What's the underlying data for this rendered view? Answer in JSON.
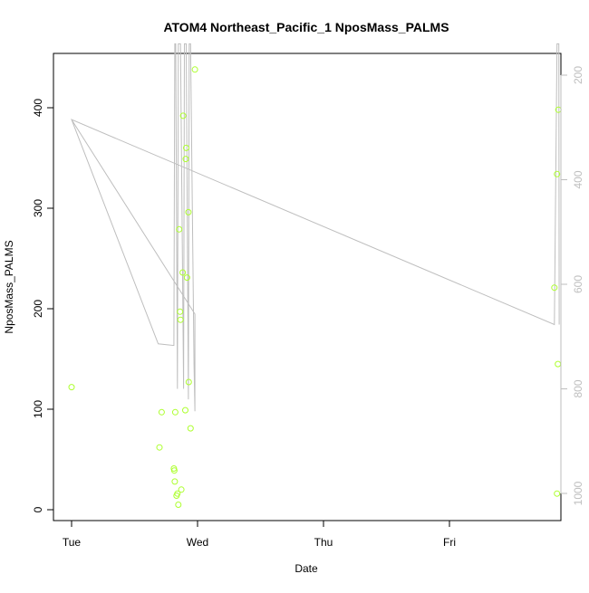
{
  "chart_data": {
    "type": "scatter",
    "title": "ATOM4 Northeast_Pacific_1 NposMass_PALMS",
    "xlabel": "Date",
    "ylabel": "NposMass_PALMS",
    "x_ticks": [
      "Tue",
      "Wed",
      "Thu",
      "Fri"
    ],
    "x_range": [
      "Tue 00:00",
      "Fri 20:00"
    ],
    "ylim": [
      -12,
      455
    ],
    "y_ticks": [
      0,
      100,
      200,
      300,
      400
    ],
    "y2_ticks": [
      200,
      400,
      600,
      800,
      1000
    ],
    "y2lim": [
      1010,
      140
    ],
    "point_color": "#ADFF2F",
    "line_color": "#BEBEBE",
    "points": [
      {
        "x": "Tue 00:00",
        "y": 122
      },
      {
        "x": "Tue 16:45",
        "y": 62
      },
      {
        "x": "Tue 17:10",
        "y": 97
      },
      {
        "x": "Tue 19:30",
        "y": 41
      },
      {
        "x": "Tue 19:35",
        "y": 39
      },
      {
        "x": "Tue 19:40",
        "y": 28
      },
      {
        "x": "Tue 19:45",
        "y": 97
      },
      {
        "x": "Tue 20:00",
        "y": 14
      },
      {
        "x": "Tue 20:10",
        "y": 16
      },
      {
        "x": "Tue 20:20",
        "y": 5
      },
      {
        "x": "Tue 20:30",
        "y": 279
      },
      {
        "x": "Tue 20:40",
        "y": 197
      },
      {
        "x": "Tue 20:45",
        "y": 189
      },
      {
        "x": "Tue 20:55",
        "y": 20
      },
      {
        "x": "Tue 21:10",
        "y": 236
      },
      {
        "x": "Tue 21:15",
        "y": 392
      },
      {
        "x": "Tue 21:40",
        "y": 99
      },
      {
        "x": "Tue 21:45",
        "y": 349
      },
      {
        "x": "Tue 21:50",
        "y": 360
      },
      {
        "x": "Tue 22:00",
        "y": 231
      },
      {
        "x": "Tue 22:15",
        "y": 296
      },
      {
        "x": "Tue 22:20",
        "y": 127
      },
      {
        "x": "Tue 22:40",
        "y": 81
      },
      {
        "x": "Tue 23:30",
        "y": 438
      },
      {
        "x": "Fri 20:00",
        "y": 221
      },
      {
        "x": "Fri 20:30",
        "y": 334
      },
      {
        "x": "Fri 20:30",
        "y": 16
      },
      {
        "x": "Fri 20:40",
        "y": 145
      },
      {
        "x": "Fri 20:45",
        "y": 398
      }
    ],
    "altitude_series": [
      {
        "x": "Tue 00:00",
        "y2": 285
      },
      {
        "x": "Tue 23:30",
        "y2": 657
      },
      {
        "x": "Tue 23:30",
        "y2": 843
      },
      {
        "x": "Tue 23:20",
        "y2": 751
      },
      {
        "x": "Tue 22:40",
        "y2": 140
      },
      {
        "x": "Tue 22:25",
        "y2": 140
      },
      {
        "x": "Tue 22:15",
        "y2": 820
      },
      {
        "x": "Tue 21:50",
        "y2": 140
      },
      {
        "x": "Tue 21:30",
        "y2": 140
      },
      {
        "x": "Tue 21:20",
        "y2": 800
      },
      {
        "x": "Tue 20:45",
        "y2": 140
      },
      {
        "x": "Tue 20:20",
        "y2": 140
      },
      {
        "x": "Tue 20:10",
        "y2": 800
      },
      {
        "x": "Tue 19:50",
        "y2": 140
      },
      {
        "x": "Tue 19:40",
        "y2": 140
      },
      {
        "x": "Tue 19:30",
        "y2": 717
      },
      {
        "x": "Tue 16:30",
        "y2": 714
      },
      {
        "x": "Tue 00:00",
        "y2": 285
      },
      {
        "x": "Fri 20:00",
        "y2": 677
      },
      {
        "x": "Fri 20:30",
        "y2": 140
      },
      {
        "x": "Fri 20:50",
        "y2": 140
      },
      {
        "x": "Fri 20:55",
        "y2": 677
      }
    ]
  }
}
